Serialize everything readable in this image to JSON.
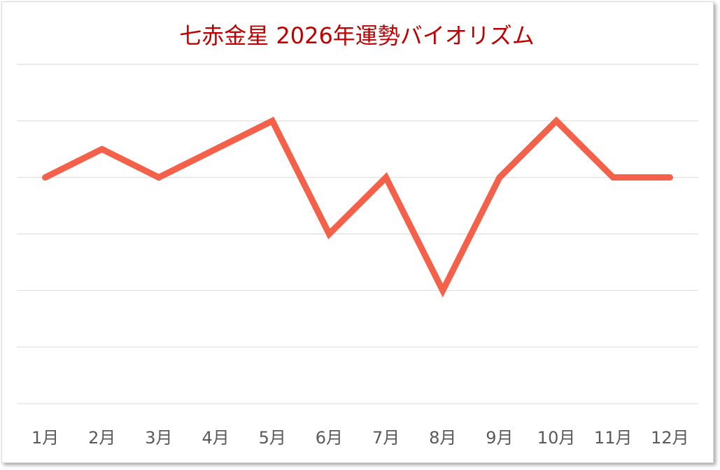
{
  "chart_data": {
    "type": "line",
    "title": "七赤金星  2026年運勢バイオリズム",
    "categories": [
      "1月",
      "2月",
      "3月",
      "4月",
      "5月",
      "6月",
      "7月",
      "8月",
      "9月",
      "10月",
      "11月",
      "12月"
    ],
    "values": [
      4,
      4.5,
      4,
      4.5,
      5,
      3,
      4,
      2,
      4,
      5,
      4,
      4
    ],
    "ylim": [
      0,
      6
    ],
    "grid": true,
    "y_tick_labels_shown": false,
    "xlabel": "",
    "ylabel": "",
    "colors": {
      "line": "#f4614b",
      "title": "#c00000",
      "grid": "#d9d9d9",
      "tick_label": "#595959"
    }
  }
}
